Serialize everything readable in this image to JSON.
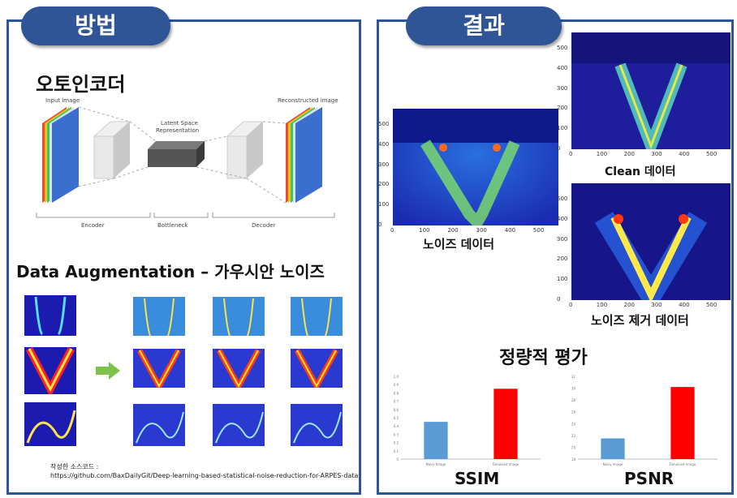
{
  "tabs": {
    "method": "방법",
    "result": "결과"
  },
  "method": {
    "autoencoder_title": "오토인코더",
    "diagram": {
      "input_label": "Input image",
      "latent_label_1": "Latent Space",
      "latent_label_2": "Representation",
      "output_label": "Reconstructed image",
      "encoder": "Encoder",
      "bottleneck": "Bottleneck",
      "decoder": "Decoder"
    },
    "augmentation_title": "Data Augmentation – 가우시안 노이즈",
    "source_label": "작성한 소스코드 :",
    "source_url": "https://github.com/BaxDailyGit/Deep-learning-based-statistical-noise-reduction-for-ARPES-data"
  },
  "result": {
    "noisy_caption": "노이즈 데이터",
    "clean_caption": "Clean 데이터",
    "denoised_caption": "노이즈 제거 데이터",
    "quant_title": "정량적 평가",
    "x_ticks": [
      "0",
      "100",
      "200",
      "300",
      "400",
      "500"
    ],
    "y_ticks": [
      "0",
      "100",
      "200",
      "300",
      "400",
      "500"
    ],
    "colors": {
      "blue": "#5b9bd5",
      "red": "#ff0000",
      "accent": "#2f5597"
    }
  },
  "chart_data": [
    {
      "type": "bar",
      "title": "SSIM",
      "categories": [
        "Noisy Image",
        "Denoised Image"
      ],
      "values": [
        0.45,
        0.85
      ],
      "ylim": [
        0,
        1.0
      ],
      "y_ticks": [
        "0",
        "0.1",
        "0.2",
        "0.3",
        "0.4",
        "0.5",
        "0.6",
        "0.7",
        "0.8",
        "0.9",
        "1.0"
      ],
      "colors": [
        "#5b9bd5",
        "#ff0000"
      ]
    },
    {
      "type": "bar",
      "title": "PSNR",
      "categories": [
        "Noisy Image",
        "Denoised Image"
      ],
      "values": [
        21.5,
        30.2
      ],
      "ylim": [
        18,
        32
      ],
      "y_ticks": [
        "18",
        "20",
        "22",
        "24",
        "26",
        "28",
        "30",
        "32"
      ],
      "colors": [
        "#5b9bd5",
        "#ff0000"
      ]
    }
  ]
}
